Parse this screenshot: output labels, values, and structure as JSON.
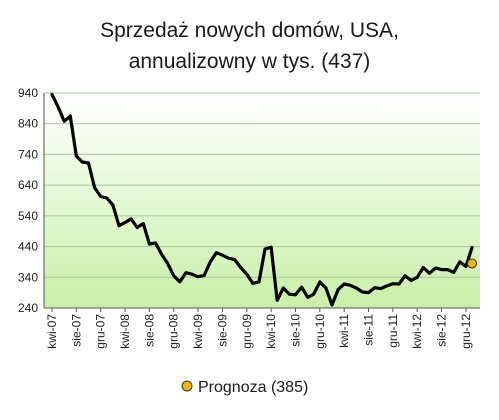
{
  "chart_data": {
    "type": "line",
    "title_line1": "Sprzedaż nowych domów, USA,",
    "title_line2": "annualizowny w tys. (437)",
    "ylim": [
      240,
      940
    ],
    "yticks": [
      240,
      340,
      440,
      540,
      640,
      740,
      840,
      940
    ],
    "x_labels": [
      "kwi-07",
      "sie-07",
      "gru-07",
      "kwi-08",
      "sie-08",
      "gru-08",
      "kwi-09",
      "sie-09",
      "gru-09",
      "kwi-10",
      "sie-10",
      "gru-10",
      "kwi-11",
      "sie-11",
      "gru-11",
      "kwi-12",
      "sie-12",
      "gru-12"
    ],
    "series": [
      {
        "values": [
          935,
          895,
          848,
          865,
          735,
          715,
          712,
          632,
          603,
          598,
          575,
          508,
          518,
          530,
          502,
          515,
          448,
          452,
          415,
          385,
          345,
          325,
          355,
          350,
          342,
          346,
          390,
          420,
          412,
          402,
          398,
          372,
          350,
          320,
          325,
          432,
          438,
          265,
          305,
          285,
          283,
          308,
          275,
          285,
          325,
          305,
          250,
          300,
          318,
          314,
          305,
          292,
          290,
          306,
          303,
          312,
          319,
          318,
          345,
          330,
          340,
          372,
          353,
          370,
          365,
          365,
          356,
          390,
          375,
          437
        ]
      }
    ],
    "forecast": {
      "label": "Prognoza (385)",
      "value": 385
    },
    "colors": {
      "line": "#000000",
      "forecast_marker": "#f4b400",
      "plot_bg_top": "#ffffff",
      "plot_bg_bottom": "#c8f0a8",
      "grid": "#aac79a"
    },
    "grid": true,
    "legend_position": "bottom"
  }
}
